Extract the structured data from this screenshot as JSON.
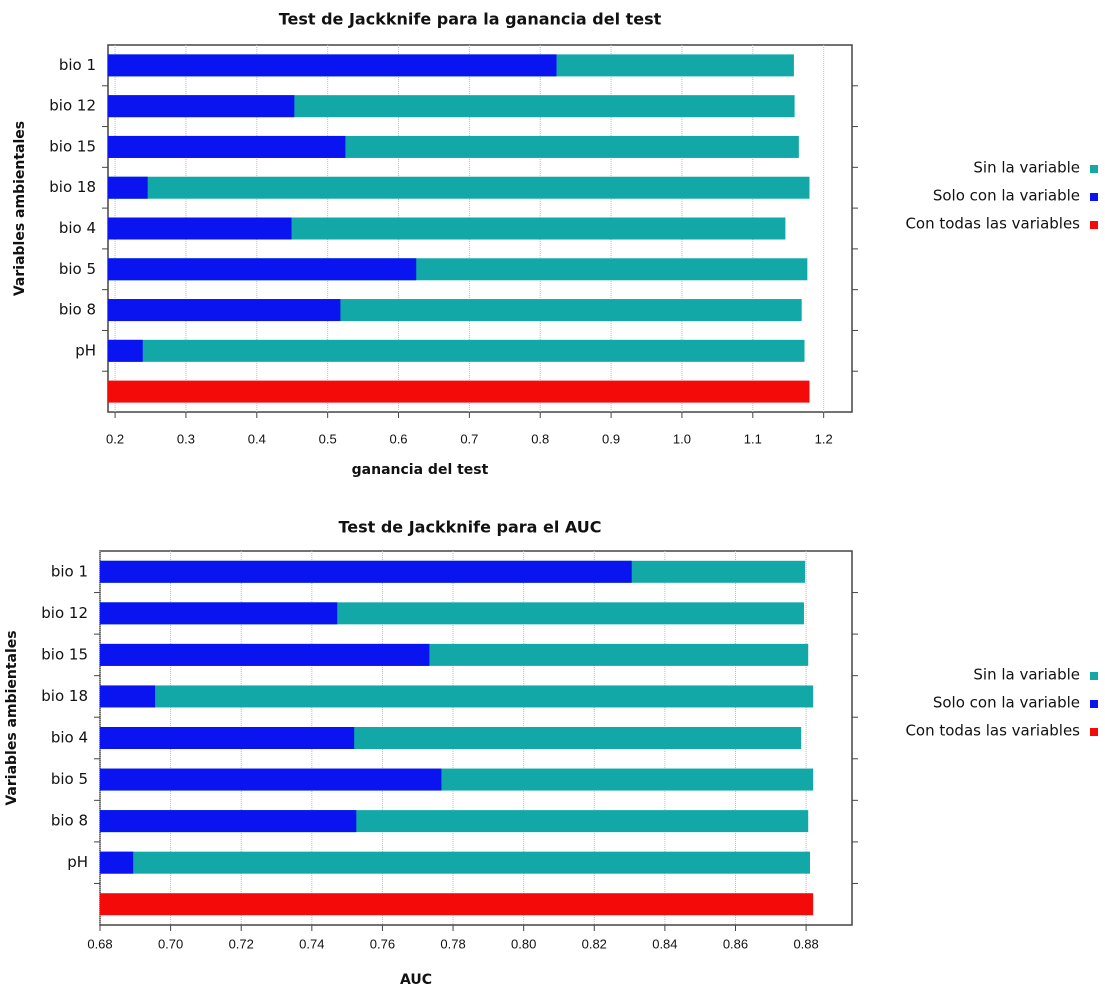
{
  "chart_data": [
    {
      "type": "barh",
      "title": "Test de Jackknife para la ganancia del test",
      "xlabel": "ganancia del test",
      "ylabel": "Variables ambientales",
      "categories": [
        "bio 1",
        "bio 12",
        "bio 15",
        "bio 18",
        "bio 4",
        "bio 5",
        "bio 8",
        "pH",
        null
      ],
      "series": [
        {
          "name": "Sin la variable",
          "color": "#12a8a8",
          "values": [
            1.158,
            1.159,
            1.165,
            1.18,
            1.146,
            1.177,
            1.169,
            1.173,
            null
          ]
        },
        {
          "name": "Solo con la variable",
          "color": "#0a14f0",
          "values": [
            0.823,
            0.453,
            0.525,
            0.246,
            0.449,
            0.625,
            0.518,
            0.239,
            null
          ]
        },
        {
          "name": "Con todas las variables",
          "color": "#f50a0a",
          "values": [
            null,
            null,
            null,
            null,
            null,
            null,
            null,
            null,
            1.18
          ]
        }
      ],
      "xlim": [
        0.19,
        1.24
      ],
      "xticks": [
        0.2,
        0.3,
        0.4,
        0.5,
        0.6,
        0.7,
        0.8,
        0.9,
        {
          "value": 1,
          "label": "1.0"
        },
        1.1,
        1.2
      ],
      "grid": true
    },
    {
      "type": "barh",
      "title": "Test de Jackknife para el AUC",
      "xlabel": "AUC",
      "ylabel": "Variables ambientales",
      "categories": [
        "bio 1",
        "bio 12",
        "bio 15",
        "bio 18",
        "bio 4",
        "bio 5",
        "bio 8",
        "pH",
        null
      ],
      "series": [
        {
          "name": "Sin la variable",
          "color": "#12a8a8",
          "values": [
            0.8797,
            0.8794,
            0.8806,
            0.882,
            0.8786,
            0.882,
            0.8806,
            0.8811,
            null
          ]
        },
        {
          "name": "Solo con la variable",
          "color": "#0a14f0",
          "values": [
            0.8306,
            0.7472,
            0.7733,
            0.6956,
            0.752,
            0.7767,
            0.7526,
            0.6894,
            null
          ]
        },
        {
          "name": "Con todas las variables",
          "color": "#f50a0a",
          "values": [
            null,
            null,
            null,
            null,
            null,
            null,
            null,
            null,
            0.882
          ]
        }
      ],
      "xlim": [
        0.68,
        0.893
      ],
      "xticks": [
        0.68,
        {
          "value": 0.7,
          "label": "0.70"
        },
        0.72,
        0.74,
        0.76,
        0.78,
        {
          "value": 0.8,
          "label": "0.80"
        },
        0.82,
        0.84,
        0.86,
        0.88
      ],
      "grid": true
    }
  ]
}
